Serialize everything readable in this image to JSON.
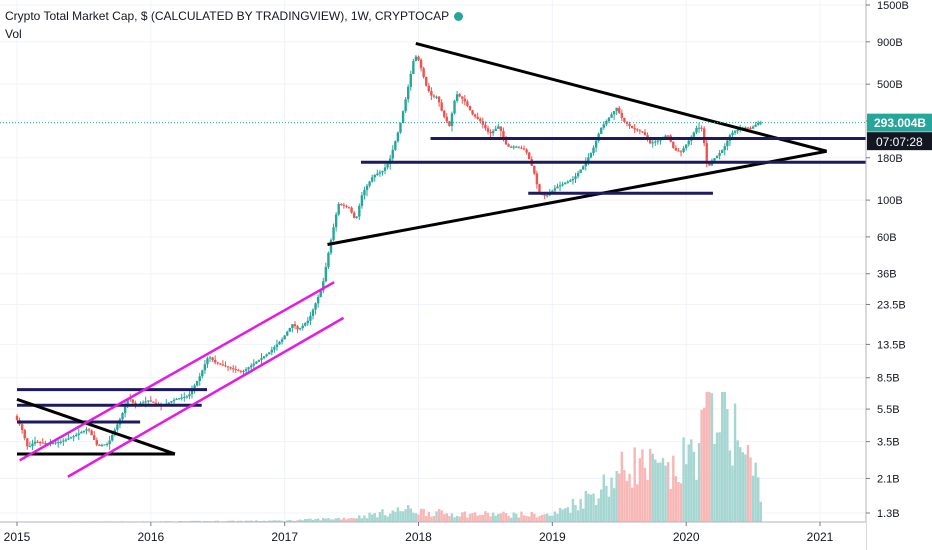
{
  "header": {
    "title": "Crypto Total Market Cap, $ (CALCULATED BY TRADINGVIEW), 1W, CRYPTOCAP",
    "volume_label": "Vol"
  },
  "price_badge": {
    "value": "293.004B",
    "color": "#26a69a"
  },
  "countdown_badge": {
    "value": "07:07:28",
    "color": "#131722"
  },
  "colors": {
    "up": "#26a69a",
    "down": "#ef5350",
    "up_volume": "#a5d6d1",
    "down_volume": "#f7b7b6",
    "trend": "#000000",
    "support": "#1e1a5e",
    "channel": "#e619e6",
    "grid": "#f0f3fa"
  },
  "chart_data": {
    "type": "candlestick",
    "y_scale": "log",
    "y_ticks": [
      "1.3B",
      "2.1B",
      "3.5B",
      "5.5B",
      "8.5B",
      "13.5B",
      "23.5B",
      "36B",
      "60B",
      "100B",
      "180B",
      "300B",
      "500B",
      "900B",
      "1500B"
    ],
    "x_ticks": [
      "2015",
      "2016",
      "2017",
      "2018",
      "2019",
      "2020",
      "2021"
    ],
    "xlim": [
      2015.0,
      2021.4
    ],
    "ylim_billions": [
      1.2,
      1500
    ],
    "last_price_billions": 293.004,
    "price_path": [
      [
        2015.0,
        5.0
      ],
      [
        2015.05,
        4.3
      ],
      [
        2015.1,
        3.2
      ],
      [
        2015.15,
        3.5
      ],
      [
        2015.25,
        3.4
      ],
      [
        2015.35,
        3.5
      ],
      [
        2015.45,
        3.8
      ],
      [
        2015.55,
        4.2
      ],
      [
        2015.62,
        3.3
      ],
      [
        2015.7,
        3.4
      ],
      [
        2015.8,
        5.0
      ],
      [
        2015.85,
        6.5
      ],
      [
        2015.9,
        5.8
      ],
      [
        2016.0,
        6.2
      ],
      [
        2016.1,
        5.7
      ],
      [
        2016.2,
        6.3
      ],
      [
        2016.3,
        6.6
      ],
      [
        2016.38,
        8.5
      ],
      [
        2016.45,
        11.5
      ],
      [
        2016.5,
        10.5
      ],
      [
        2016.6,
        9.8
      ],
      [
        2016.7,
        9.2
      ],
      [
        2016.8,
        10.5
      ],
      [
        2016.9,
        12.0
      ],
      [
        2017.0,
        14.5
      ],
      [
        2017.08,
        18.0
      ],
      [
        2017.12,
        16.5
      ],
      [
        2017.2,
        19.0
      ],
      [
        2017.3,
        30.0
      ],
      [
        2017.35,
        50.0
      ],
      [
        2017.42,
        95.0
      ],
      [
        2017.5,
        90.0
      ],
      [
        2017.55,
        75.0
      ],
      [
        2017.6,
        110.0
      ],
      [
        2017.68,
        140.0
      ],
      [
        2017.75,
        150.0
      ],
      [
        2017.8,
        170.0
      ],
      [
        2017.88,
        280.0
      ],
      [
        2017.93,
        430.0
      ],
      [
        2017.99,
        750.0
      ],
      [
        2018.02,
        700.0
      ],
      [
        2018.08,
        480.0
      ],
      [
        2018.12,
        420.0
      ],
      [
        2018.16,
        420.0
      ],
      [
        2018.2,
        330.0
      ],
      [
        2018.25,
        280.0
      ],
      [
        2018.3,
        440.0
      ],
      [
        2018.36,
        400.0
      ],
      [
        2018.42,
        330.0
      ],
      [
        2018.48,
        300.0
      ],
      [
        2018.55,
        250.0
      ],
      [
        2018.62,
        280.0
      ],
      [
        2018.68,
        210.0
      ],
      [
        2018.75,
        210.0
      ],
      [
        2018.82,
        200.0
      ],
      [
        2018.88,
        150.0
      ],
      [
        2018.92,
        110.0
      ],
      [
        2018.97,
        105.0
      ],
      [
        2019.05,
        120.0
      ],
      [
        2019.1,
        125.0
      ],
      [
        2019.18,
        135.0
      ],
      [
        2019.25,
        160.0
      ],
      [
        2019.32,
        200.0
      ],
      [
        2019.38,
        270.0
      ],
      [
        2019.45,
        320.0
      ],
      [
        2019.5,
        360.0
      ],
      [
        2019.55,
        300.0
      ],
      [
        2019.62,
        270.0
      ],
      [
        2019.7,
        255.0
      ],
      [
        2019.75,
        220.0
      ],
      [
        2019.82,
        230.0
      ],
      [
        2019.88,
        250.0
      ],
      [
        2019.93,
        200.0
      ],
      [
        2019.98,
        195.0
      ],
      [
        2020.05,
        235.0
      ],
      [
        2020.1,
        275.0
      ],
      [
        2020.14,
        270.0
      ],
      [
        2020.18,
        150.0
      ],
      [
        2020.2,
        170.0
      ],
      [
        2020.25,
        185.0
      ],
      [
        2020.3,
        205.0
      ],
      [
        2020.35,
        250.0
      ],
      [
        2020.4,
        265.0
      ],
      [
        2020.45,
        275.0
      ],
      [
        2020.5,
        270.0
      ],
      [
        2020.56,
        293.0
      ]
    ],
    "volume_profile": [
      [
        2015.0,
        0.002
      ],
      [
        2016.0,
        0.004
      ],
      [
        2017.0,
        0.01
      ],
      [
        2017.5,
        0.03
      ],
      [
        2017.9,
        0.09
      ],
      [
        2018.2,
        0.06
      ],
      [
        2018.6,
        0.055
      ],
      [
        2019.0,
        0.05
      ],
      [
        2019.3,
        0.2
      ],
      [
        2019.6,
        0.42
      ],
      [
        2019.9,
        0.33
      ],
      [
        2020.1,
        0.57
      ],
      [
        2020.2,
        0.94
      ],
      [
        2020.3,
        0.83
      ],
      [
        2020.4,
        0.55
      ],
      [
        2020.56,
        0.26
      ]
    ],
    "drawings": [
      {
        "kind": "trend",
        "from": [
          2017.98,
          880
        ],
        "to": [
          2021.05,
          197
        ]
      },
      {
        "kind": "trend",
        "from": [
          2017.32,
          54
        ],
        "to": [
          2021.05,
          197
        ]
      },
      {
        "kind": "support",
        "from": [
          2018.09,
          235
        ],
        "to": [
          2021.4,
          235
        ]
      },
      {
        "kind": "support",
        "from": [
          2017.57,
          169
        ],
        "to": [
          2021.4,
          169
        ]
      },
      {
        "kind": "support",
        "from": [
          2018.82,
          110
        ],
        "to": [
          2020.2,
          110
        ]
      },
      {
        "kind": "support",
        "from": [
          2015.0,
          7.2
        ],
        "to": [
          2016.42,
          7.2
        ]
      },
      {
        "kind": "support",
        "from": [
          2015.0,
          5.8
        ],
        "to": [
          2016.38,
          5.8
        ]
      },
      {
        "kind": "support",
        "from": [
          2015.0,
          4.6
        ],
        "to": [
          2015.92,
          4.6
        ]
      },
      {
        "kind": "trend",
        "from": [
          2015.0,
          6.3
        ],
        "to": [
          2016.18,
          2.95
        ]
      },
      {
        "kind": "trend",
        "from": [
          2015.0,
          2.95
        ],
        "to": [
          2016.18,
          2.95
        ]
      },
      {
        "kind": "channel",
        "from": [
          2015.02,
          2.7
        ],
        "to": [
          2017.37,
          32
        ]
      },
      {
        "kind": "channel",
        "from": [
          2015.38,
          2.15
        ],
        "to": [
          2017.44,
          19.5
        ]
      }
    ]
  }
}
